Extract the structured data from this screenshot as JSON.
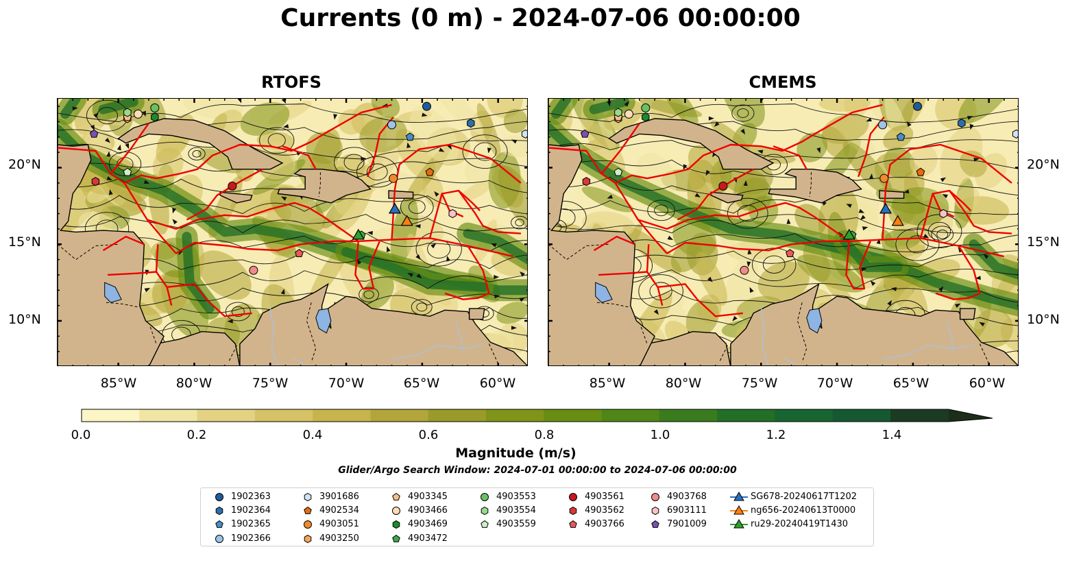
{
  "title": "Currents (0 m) - 2024-07-06 00:00:00",
  "panels": [
    {
      "title": "RTOFS"
    },
    {
      "title": "CMEMS"
    }
  ],
  "axes": {
    "lat_ticks": [
      "20°N",
      "15°N",
      "10°N"
    ],
    "lon_ticks": [
      "85°W",
      "80°W",
      "75°W",
      "70°W",
      "65°W",
      "60°W"
    ]
  },
  "colorbar": {
    "label": "Magnitude (m/s)",
    "ticks": [
      "0.0",
      "0.2",
      "0.4",
      "0.6",
      "0.8",
      "1.0",
      "1.2",
      "1.4"
    ],
    "range": [
      0.0,
      1.5
    ],
    "extend": "max",
    "colors": [
      "#fcf6c6",
      "#f1e5a4",
      "#e4d283",
      "#d6c266",
      "#c7b44c",
      "#b2a63b",
      "#9a9a2a",
      "#7f9418",
      "#678e13",
      "#4f8617",
      "#3a7c1d",
      "#236f27",
      "#176531",
      "#165931",
      "#184a2b",
      "#1b3b22",
      "#1c2e18"
    ]
  },
  "search_window": "Glider/Argo Search Window: 2024-07-01 00:00:00 to 2024-07-06 00:00:00",
  "legend": [
    {
      "label": "1902363",
      "marker": "circle",
      "color": "#1f5c99"
    },
    {
      "label": "1902364",
      "marker": "hexagon",
      "color": "#2c6fad"
    },
    {
      "label": "1902365",
      "marker": "pentagon",
      "color": "#4a8cc6"
    },
    {
      "label": "1902366",
      "marker": "circle",
      "color": "#9ec4e6"
    },
    {
      "label": "3901686",
      "marker": "hexagon",
      "color": "#cfe3f4"
    },
    {
      "label": "4902534",
      "marker": "pentagon",
      "color": "#e86b0c"
    },
    {
      "label": "4903051",
      "marker": "circle",
      "color": "#f08a2e"
    },
    {
      "label": "4903250",
      "marker": "hexagon",
      "color": "#f5a65b"
    },
    {
      "label": "4903345",
      "marker": "pentagon",
      "color": "#f7c08a"
    },
    {
      "label": "4903466",
      "marker": "circle",
      "color": "#fbdcbb"
    },
    {
      "label": "4903469",
      "marker": "hexagon",
      "color": "#1d8a2e"
    },
    {
      "label": "4903472",
      "marker": "pentagon",
      "color": "#3fa84a"
    },
    {
      "label": "4903553",
      "marker": "circle",
      "color": "#68c163"
    },
    {
      "label": "4903554",
      "marker": "hexagon",
      "color": "#98d98e"
    },
    {
      "label": "4903559",
      "marker": "pentagon",
      "color": "#cdeec6"
    },
    {
      "label": "4903561",
      "marker": "circle",
      "color": "#c9181e"
    },
    {
      "label": "4903562",
      "marker": "hexagon",
      "color": "#d9373a"
    },
    {
      "label": "4903766",
      "marker": "pentagon",
      "color": "#e6595c"
    },
    {
      "label": "4903768",
      "marker": "circle",
      "color": "#f08a8c"
    },
    {
      "label": "6903111",
      "marker": "hexagon",
      "color": "#f8c2c7"
    },
    {
      "label": "7901009",
      "marker": "pentagon",
      "color": "#7a50b0"
    },
    {
      "label": "SG678-20240617T1202",
      "marker": "triangle",
      "color": "#2a6fbf"
    },
    {
      "label": "ng656-20240613T0000",
      "marker": "triangle",
      "color": "#ff7f0e"
    },
    {
      "label": "ru29-20240419T1430",
      "marker": "triangle",
      "color": "#2ca02c"
    }
  ],
  "map_extent": {
    "lon": [
      -89,
      -58
    ],
    "lat": [
      7,
      24.5
    ]
  },
  "floats": [
    {
      "id": "1902363",
      "lon": -64.7,
      "lat": 24.0
    },
    {
      "id": "1902364",
      "lon": -61.8,
      "lat": 22.9
    },
    {
      "id": "1902365",
      "lon": -65.8,
      "lat": 22.0
    },
    {
      "id": "1902366",
      "lon": -67.0,
      "lat": 22.8
    },
    {
      "id": "3901686",
      "lon": -58.2,
      "lat": 22.2
    },
    {
      "id": "4902534",
      "lon": -64.5,
      "lat": 19.7
    },
    {
      "id": "4903051",
      "lon": -66.9,
      "lat": 19.3
    },
    {
      "id": "4903250",
      "lon": -84.4,
      "lat": 23.2
    },
    {
      "id": "4903345",
      "lon": -84.4,
      "lat": 23.3
    },
    {
      "id": "4903466",
      "lon": -83.7,
      "lat": 23.5
    },
    {
      "id": "4903469",
      "lon": -82.6,
      "lat": 23.3
    },
    {
      "id": "4903472",
      "lon": -69.0,
      "lat": 15.6
    },
    {
      "id": "4903553",
      "lon": -82.6,
      "lat": 23.9
    },
    {
      "id": "4903554",
      "lon": -84.4,
      "lat": 23.6
    },
    {
      "id": "4903559",
      "lon": -84.4,
      "lat": 19.7
    },
    {
      "id": "4903561",
      "lon": -77.5,
      "lat": 18.8
    },
    {
      "id": "4903562",
      "lon": -86.5,
      "lat": 19.1
    },
    {
      "id": "4903766",
      "lon": -73.1,
      "lat": 14.4
    },
    {
      "id": "4903768",
      "lon": -76.1,
      "lat": 13.3
    },
    {
      "id": "6903111",
      "lon": -63.0,
      "lat": 17.0
    },
    {
      "id": "7901009",
      "lon": -86.6,
      "lat": 22.2
    }
  ],
  "gliders": [
    {
      "id": "SG678-20240617T1202",
      "lon": -66.8,
      "lat": 17.3
    },
    {
      "id": "ng656-20240613T0000",
      "lon": -66.0,
      "lat": 16.5
    },
    {
      "id": "ru29-20240419T1430",
      "lon": -69.2,
      "lat": 15.6
    }
  ]
}
